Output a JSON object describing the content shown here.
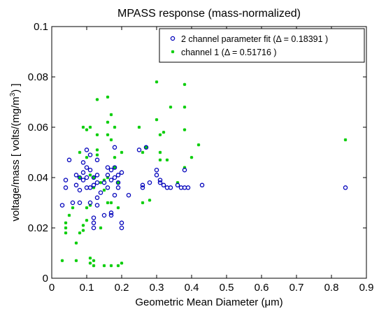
{
  "chart_data": {
    "type": "scatter",
    "title": "MPASS response (mass-normalized)",
    "xlabel_main": "Geometric Mean Diameter (",
    "xlabel_unit": "μm",
    "xlabel_close": ")",
    "ylabel_main": "voltage/mass [ volts/(mg/m",
    "ylabel_sup": "3",
    "ylabel_close": ") ]",
    "xlim": [
      0,
      0.9
    ],
    "ylim": [
      0,
      0.1
    ],
    "x_ticks": [
      "0",
      "0.1",
      "0.2",
      "0.3",
      "0.4",
      "0.5",
      "0.6",
      "0.7",
      "0.8",
      "0.9"
    ],
    "y_ticks": [
      "0",
      "0.02",
      "0.04",
      "0.06",
      "0.08",
      "0.1"
    ],
    "grid": false,
    "legend_position": "top-right",
    "series": [
      {
        "name": "2 channel parameter fit (Δ = 0.18391 )",
        "marker": "circle",
        "color": "#0000bb",
        "points": [
          [
            0.03,
            0.029
          ],
          [
            0.04,
            0.039
          ],
          [
            0.04,
            0.036
          ],
          [
            0.05,
            0.047
          ],
          [
            0.06,
            0.03
          ],
          [
            0.07,
            0.041
          ],
          [
            0.07,
            0.037
          ],
          [
            0.08,
            0.04
          ],
          [
            0.08,
            0.035
          ],
          [
            0.08,
            0.03
          ],
          [
            0.09,
            0.046
          ],
          [
            0.09,
            0.039
          ],
          [
            0.09,
            0.042
          ],
          [
            0.1,
            0.051
          ],
          [
            0.1,
            0.044
          ],
          [
            0.1,
            0.036
          ],
          [
            0.1,
            0.04
          ],
          [
            0.11,
            0.049
          ],
          [
            0.11,
            0.043
          ],
          [
            0.11,
            0.036
          ],
          [
            0.11,
            0.03
          ],
          [
            0.12,
            0.04
          ],
          [
            0.12,
            0.037
          ],
          [
            0.12,
            0.024
          ],
          [
            0.12,
            0.022
          ],
          [
            0.12,
            0.02
          ],
          [
            0.13,
            0.047
          ],
          [
            0.13,
            0.041
          ],
          [
            0.13,
            0.038
          ],
          [
            0.13,
            0.032
          ],
          [
            0.13,
            0.029
          ],
          [
            0.14,
            0.034
          ],
          [
            0.15,
            0.038
          ],
          [
            0.15,
            0.025
          ],
          [
            0.16,
            0.044
          ],
          [
            0.16,
            0.041
          ],
          [
            0.16,
            0.036
          ],
          [
            0.17,
            0.043
          ],
          [
            0.17,
            0.039
          ],
          [
            0.17,
            0.026
          ],
          [
            0.17,
            0.025
          ],
          [
            0.18,
            0.052
          ],
          [
            0.18,
            0.044
          ],
          [
            0.18,
            0.04
          ],
          [
            0.18,
            0.033
          ],
          [
            0.19,
            0.041
          ],
          [
            0.19,
            0.038
          ],
          [
            0.19,
            0.036
          ],
          [
            0.2,
            0.042
          ],
          [
            0.2,
            0.022
          ],
          [
            0.2,
            0.02
          ],
          [
            0.22,
            0.033
          ],
          [
            0.25,
            0.051
          ],
          [
            0.26,
            0.037
          ],
          [
            0.26,
            0.036
          ],
          [
            0.27,
            0.052
          ],
          [
            0.28,
            0.038
          ],
          [
            0.3,
            0.043
          ],
          [
            0.3,
            0.041
          ],
          [
            0.31,
            0.039
          ],
          [
            0.31,
            0.038
          ],
          [
            0.32,
            0.037
          ],
          [
            0.33,
            0.036
          ],
          [
            0.34,
            0.036
          ],
          [
            0.36,
            0.037
          ],
          [
            0.37,
            0.036
          ],
          [
            0.38,
            0.043
          ],
          [
            0.38,
            0.036
          ],
          [
            0.39,
            0.036
          ],
          [
            0.43,
            0.037
          ],
          [
            0.84,
            0.036
          ]
        ]
      },
      {
        "name": "channel 1 (Δ = 0.51716 )",
        "marker": "star",
        "color": "#00cc00",
        "points": [
          [
            0.03,
            0.007
          ],
          [
            0.04,
            0.02
          ],
          [
            0.04,
            0.018
          ],
          [
            0.04,
            0.022
          ],
          [
            0.05,
            0.025
          ],
          [
            0.06,
            0.028
          ],
          [
            0.07,
            0.007
          ],
          [
            0.07,
            0.014
          ],
          [
            0.08,
            0.018
          ],
          [
            0.08,
            0.05
          ],
          [
            0.08,
            0.04
          ],
          [
            0.09,
            0.06
          ],
          [
            0.09,
            0.021
          ],
          [
            0.09,
            0.019
          ],
          [
            0.1,
            0.059
          ],
          [
            0.1,
            0.028
          ],
          [
            0.1,
            0.023
          ],
          [
            0.1,
            0.048
          ],
          [
            0.11,
            0.06
          ],
          [
            0.11,
            0.041
          ],
          [
            0.11,
            0.029
          ],
          [
            0.11,
            0.008
          ],
          [
            0.11,
            0.006
          ],
          [
            0.12,
            0.005
          ],
          [
            0.12,
            0.007
          ],
          [
            0.12,
            0.036
          ],
          [
            0.12,
            0.04
          ],
          [
            0.13,
            0.071
          ],
          [
            0.13,
            0.057
          ],
          [
            0.13,
            0.051
          ],
          [
            0.13,
            0.049
          ],
          [
            0.14,
            0.038
          ],
          [
            0.14,
            0.02
          ],
          [
            0.15,
            0.005
          ],
          [
            0.15,
            0.035
          ],
          [
            0.15,
            0.039
          ],
          [
            0.16,
            0.072
          ],
          [
            0.16,
            0.062
          ],
          [
            0.16,
            0.057
          ],
          [
            0.16,
            0.04
          ],
          [
            0.16,
            0.03
          ],
          [
            0.17,
            0.065
          ],
          [
            0.17,
            0.055
          ],
          [
            0.17,
            0.005
          ],
          [
            0.17,
            0.03
          ],
          [
            0.18,
            0.06
          ],
          [
            0.18,
            0.048
          ],
          [
            0.18,
            0.044
          ],
          [
            0.19,
            0.005
          ],
          [
            0.19,
            0.038
          ],
          [
            0.19,
            0.028
          ],
          [
            0.2,
            0.006
          ],
          [
            0.2,
            0.05
          ],
          [
            0.25,
            0.06
          ],
          [
            0.26,
            0.05
          ],
          [
            0.26,
            0.03
          ],
          [
            0.27,
            0.052
          ],
          [
            0.28,
            0.031
          ],
          [
            0.3,
            0.078
          ],
          [
            0.3,
            0.063
          ],
          [
            0.31,
            0.05
          ],
          [
            0.31,
            0.057
          ],
          [
            0.31,
            0.047
          ],
          [
            0.32,
            0.058
          ],
          [
            0.33,
            0.047
          ],
          [
            0.34,
            0.068
          ],
          [
            0.36,
            0.038
          ],
          [
            0.38,
            0.077
          ],
          [
            0.38,
            0.068
          ],
          [
            0.38,
            0.059
          ],
          [
            0.38,
            0.044
          ],
          [
            0.4,
            0.048
          ],
          [
            0.42,
            0.053
          ],
          [
            0.84,
            0.055
          ]
        ]
      }
    ]
  }
}
